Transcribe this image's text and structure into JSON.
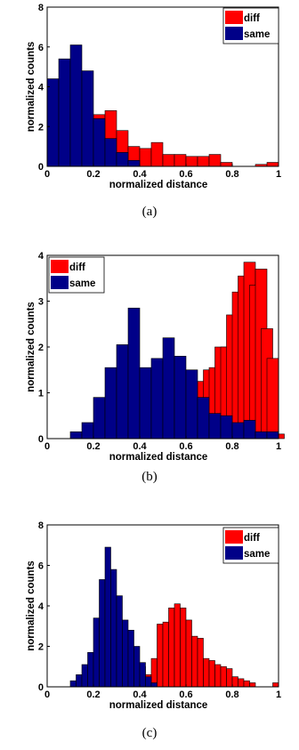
{
  "panels": [
    {
      "caption": "(a)",
      "chart_data": {
        "type": "bar",
        "xlabel": "normalized distance",
        "ylabel": "normalized counts",
        "xlim": [
          0,
          1
        ],
        "ylim": [
          0,
          8
        ],
        "xticks": [
          "0",
          "0.2",
          "0.4",
          "0.6",
          "0.8",
          "1"
        ],
        "yticks": [
          "0",
          "2",
          "4",
          "6",
          "8"
        ],
        "legend_position": "top-right",
        "bin_width": 0.05,
        "series": [
          {
            "name": "diff",
            "color": "#ff0000",
            "bins": [
              0.0,
              0.05,
              0.1,
              0.15,
              0.2,
              0.25,
              0.3,
              0.35,
              0.4,
              0.45,
              0.5,
              0.55,
              0.6,
              0.65,
              0.7,
              0.75,
              0.8,
              0.85,
              0.9,
              0.95
            ],
            "values": [
              0.0,
              0.0,
              0.0,
              0.3,
              2.6,
              2.8,
              1.8,
              1.0,
              0.9,
              1.2,
              0.6,
              0.6,
              0.5,
              0.5,
              0.6,
              0.2,
              0.0,
              0.0,
              0.1,
              0.2
            ]
          },
          {
            "name": "same",
            "color": "#000088",
            "bins": [
              0.0,
              0.05,
              0.1,
              0.15,
              0.2,
              0.25,
              0.3,
              0.35,
              0.4,
              0.45,
              0.5,
              0.55,
              0.6,
              0.65,
              0.7,
              0.75,
              0.8,
              0.85,
              0.9,
              0.95
            ],
            "values": [
              4.4,
              5.4,
              6.1,
              4.8,
              2.4,
              1.4,
              0.7,
              0.3,
              0.0,
              0.0,
              0.0,
              0.0,
              0.0,
              0.0,
              0.0,
              0.0,
              0.0,
              0.0,
              0.0,
              0.0
            ]
          }
        ]
      }
    },
    {
      "caption": "(b)",
      "chart_data": {
        "type": "bar",
        "xlabel": "normalized distance",
        "ylabel": "normalized counts",
        "xlim": [
          0,
          1
        ],
        "ylim": [
          0,
          4
        ],
        "xticks": [
          "0",
          "0.2",
          "0.4",
          "0.6",
          "0.8",
          "1"
        ],
        "yticks": [
          "0",
          "1",
          "2",
          "3",
          "4"
        ],
        "legend_position": "top-left",
        "bin_width": 0.05,
        "series": [
          {
            "name": "diff",
            "color": "#ff0000",
            "bins": [
              0.6,
              0.625,
              0.65,
              0.675,
              0.7,
              0.725,
              0.75,
              0.775,
              0.8,
              0.825,
              0.85,
              0.875,
              0.9,
              0.925,
              0.95,
              0.975
            ],
            "values": [
              0.15,
              0.5,
              1.25,
              1.5,
              1.55,
              2.0,
              2.0,
              2.7,
              3.2,
              3.55,
              3.85,
              3.35,
              3.7,
              2.4,
              1.75,
              0.1
            ]
          },
          {
            "name": "same",
            "color": "#000088",
            "bins": [
              0.1,
              0.15,
              0.2,
              0.25,
              0.3,
              0.35,
              0.4,
              0.45,
              0.5,
              0.55,
              0.6,
              0.65,
              0.7,
              0.75,
              0.8,
              0.85,
              0.9,
              0.95
            ],
            "values": [
              0.15,
              0.35,
              0.9,
              1.55,
              2.05,
              2.85,
              1.55,
              1.75,
              2.2,
              1.8,
              1.5,
              0.9,
              0.55,
              0.5,
              0.35,
              0.4,
              0.15,
              0.15
            ]
          }
        ]
      }
    },
    {
      "caption": "(c)",
      "chart_data": {
        "type": "bar",
        "xlabel": "normalized distance",
        "ylabel": "normalized counts",
        "xlim": [
          0,
          1
        ],
        "ylim": [
          0,
          8
        ],
        "xticks": [
          "0",
          "0.2",
          "0.4",
          "0.6",
          "0.8",
          "1"
        ],
        "yticks": [
          "0",
          "2",
          "4",
          "6",
          "8"
        ],
        "legend_position": "top-right",
        "bin_width": 0.025,
        "series": [
          {
            "name": "diff",
            "color": "#ff0000",
            "bins": [
              0.375,
              0.4,
              0.425,
              0.45,
              0.475,
              0.5,
              0.525,
              0.55,
              0.575,
              0.6,
              0.625,
              0.65,
              0.675,
              0.7,
              0.725,
              0.75,
              0.775,
              0.8,
              0.825,
              0.85,
              0.875,
              0.9,
              0.925,
              0.95,
              0.975
            ],
            "values": [
              0.6,
              1.0,
              0.6,
              1.4,
              3.1,
              3.2,
              3.9,
              4.1,
              3.9,
              3.3,
              2.5,
              2.4,
              1.4,
              1.3,
              1.1,
              1.0,
              0.9,
              0.5,
              0.4,
              0.3,
              0.2,
              0.0,
              0.0,
              0.0,
              0.2
            ]
          },
          {
            "name": "same",
            "color": "#000088",
            "bins": [
              0.1,
              0.125,
              0.15,
              0.175,
              0.2,
              0.225,
              0.25,
              0.275,
              0.3,
              0.325,
              0.35,
              0.375,
              0.4,
              0.425,
              0.45,
              0.475
            ],
            "values": [
              0.3,
              0.6,
              1.1,
              1.7,
              3.4,
              5.3,
              6.9,
              5.8,
              4.5,
              3.3,
              2.8,
              2.0,
              1.2,
              0.5,
              0.2,
              0.0
            ]
          }
        ]
      }
    }
  ]
}
